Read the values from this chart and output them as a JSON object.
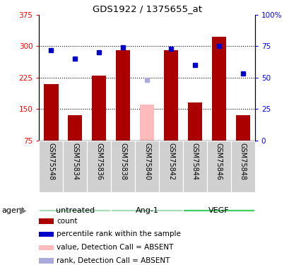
{
  "title": "GDS1922 / 1375655_at",
  "samples": [
    "GSM75548",
    "GSM75834",
    "GSM75836",
    "GSM75838",
    "GSM75840",
    "GSM75842",
    "GSM75844",
    "GSM75846",
    "GSM75848"
  ],
  "bar_values": [
    210,
    135,
    230,
    291,
    160,
    291,
    165,
    322,
    135
  ],
  "bar_colors": [
    "#aa0000",
    "#aa0000",
    "#aa0000",
    "#aa0000",
    "#ffbbbb",
    "#aa0000",
    "#aa0000",
    "#aa0000",
    "#aa0000"
  ],
  "rank_values": [
    72,
    65,
    70,
    74,
    48,
    73,
    60,
    75,
    53
  ],
  "rank_colors": [
    "#0000cc",
    "#0000cc",
    "#0000cc",
    "#0000cc",
    "#aaaadd",
    "#0000cc",
    "#0000cc",
    "#0000cc",
    "#0000cc"
  ],
  "groups": [
    {
      "label": "untreated",
      "indices": [
        0,
        1,
        2
      ],
      "color": "#aaeebb"
    },
    {
      "label": "Ang-1",
      "indices": [
        3,
        4,
        5
      ],
      "color": "#aaeebb"
    },
    {
      "label": "VEGF",
      "indices": [
        6,
        7,
        8
      ],
      "color": "#44ee66"
    }
  ],
  "ylim_left": [
    75,
    375
  ],
  "ylim_right": [
    0,
    100
  ],
  "yticks_left": [
    75,
    150,
    225,
    300,
    375
  ],
  "ytick_labels_left": [
    "75",
    "150",
    "225",
    "300",
    "375"
  ],
  "yticks_right": [
    0,
    25,
    50,
    75,
    100
  ],
  "ytick_labels_right": [
    "0",
    "25",
    "50",
    "75",
    "100%"
  ],
  "grid_values": [
    150,
    225,
    300
  ],
  "bar_width": 0.6,
  "legend_items": [
    {
      "label": "count",
      "color": "#aa0000"
    },
    {
      "label": "percentile rank within the sample",
      "color": "#0000cc"
    },
    {
      "label": "value, Detection Call = ABSENT",
      "color": "#ffbbbb"
    },
    {
      "label": "rank, Detection Call = ABSENT",
      "color": "#aaaadd"
    }
  ]
}
